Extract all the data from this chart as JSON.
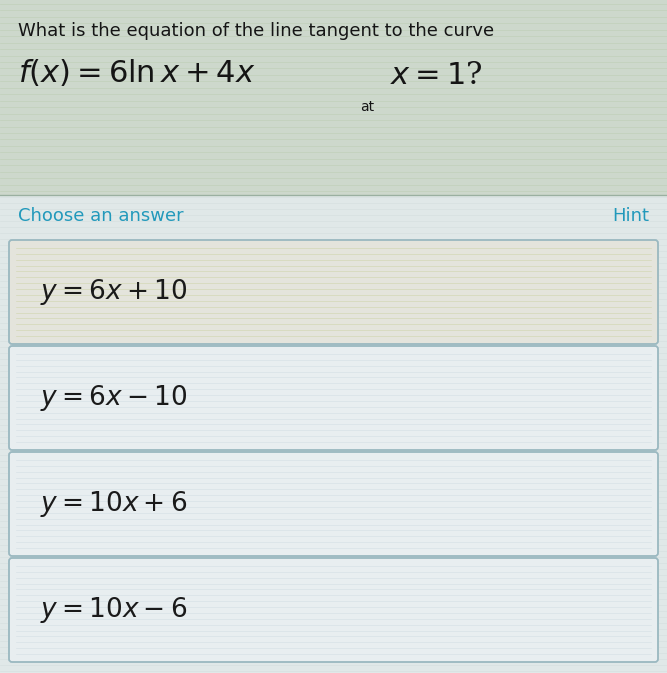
{
  "background_color": "#d8e8d8",
  "question_bg_color": "#cce0cc",
  "answer_area_bg": "#e8ecec",
  "question_line1": "What is the equation of the line tangent to the curve",
  "choose_label": "Choose an answer",
  "hint_label": "Hint",
  "answers": [
    "$y = 6x + 10$",
    "$y = 6x - 10$",
    "$y = 10x + 6$",
    "$y = 10x - 6$"
  ],
  "answer_box_colors": [
    "#e8e8e4",
    "#eaeef0",
    "#eaeef0",
    "#eaeef0"
  ],
  "answer_border_color": "#9ab8c0",
  "choose_color": "#2299bb",
  "hint_color": "#2299bb",
  "text_color": "#1a1a1a",
  "question_text_color": "#151515",
  "stripe_color_q": "#b8cca8",
  "stripe_color_ans": "#c8d8d8",
  "stripe_color_ans0": "#c8c890",
  "fig_width": 6.67,
  "fig_height": 6.73,
  "dpi": 100
}
